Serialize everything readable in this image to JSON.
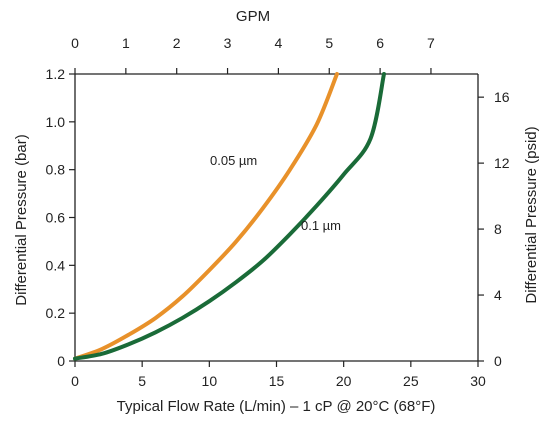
{
  "chart_data": {
    "type": "line",
    "xlabel": "Typical Flow Rate (L/min) – 1 cP @ 20°C (68°F)",
    "ylabel": "Differential Pressure (bar)",
    "x2label": "GPM",
    "y2label": "Differential Pressure (psid)",
    "xlim": [
      0,
      30
    ],
    "ylim": [
      0,
      1.2
    ],
    "x2lim": [
      0,
      7.9252
    ],
    "y2lim": [
      0,
      17.4045
    ],
    "x_ticks": [
      "0",
      "5",
      "10",
      "15",
      "20",
      "25",
      "30"
    ],
    "y_ticks": [
      "0",
      "0.2",
      "0.4",
      "0.6",
      "0.8",
      "1.0",
      "1.2"
    ],
    "x2_ticks": [
      "0",
      "1",
      "2",
      "3",
      "4",
      "5",
      "6",
      "7"
    ],
    "y2_ticks": [
      "0",
      "4",
      "8",
      "12",
      "16"
    ],
    "grid": false,
    "series": [
      {
        "name": "0.05 µm",
        "color": "#e8912a",
        "x": [
          0,
          2,
          4,
          6,
          8,
          10,
          12,
          14,
          16,
          18,
          19.5
        ],
        "y": [
          0.01,
          0.05,
          0.11,
          0.18,
          0.27,
          0.38,
          0.5,
          0.64,
          0.8,
          0.99,
          1.2
        ]
      },
      {
        "name": "0.1 µm",
        "color": "#1a6b38",
        "x": [
          0,
          2,
          4,
          6,
          8,
          10,
          12,
          14,
          16,
          18,
          20,
          22,
          23
        ],
        "y": [
          0.01,
          0.03,
          0.07,
          0.12,
          0.18,
          0.25,
          0.33,
          0.42,
          0.53,
          0.65,
          0.78,
          0.93,
          1.2
        ]
      }
    ]
  }
}
